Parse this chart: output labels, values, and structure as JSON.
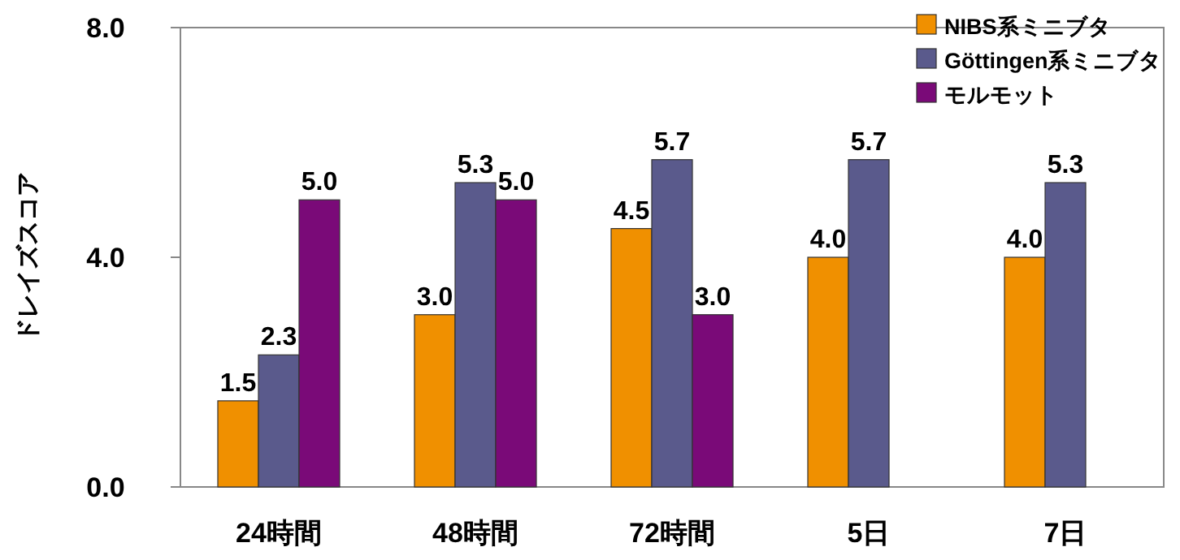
{
  "chart_data": {
    "type": "bar",
    "ylabel": "ドレイズスコア",
    "categories": [
      "24時間",
      "48時間",
      "72時間",
      "5日",
      "7日"
    ],
    "series": [
      {
        "name": "NIBS系ミニブタ",
        "color": "#f09000",
        "values": [
          1.5,
          3.0,
          4.5,
          4.0,
          4.0
        ],
        "value_labels": [
          "1.5",
          "3.0",
          "4.5",
          "4.0",
          "4.0"
        ]
      },
      {
        "name": "Göttingen系ミニブタ",
        "color": "#5a5a8c",
        "values": [
          2.3,
          5.3,
          5.7,
          5.7,
          5.3
        ],
        "value_labels": [
          "2.3",
          "5.3",
          "5.7",
          "5.7",
          "5.3"
        ]
      },
      {
        "name": "モルモット",
        "color": "#7a0a78",
        "values": [
          5.0,
          5.0,
          3.0,
          null,
          null
        ],
        "value_labels": [
          "5.0",
          "5.0",
          "3.0",
          null,
          null
        ]
      }
    ],
    "ylim": [
      0,
      8
    ],
    "yticks": [
      {
        "value": 0,
        "label": "0.0"
      },
      {
        "value": 4,
        "label": "4.0"
      },
      {
        "value": 8,
        "label": "8.0"
      }
    ],
    "legend": "top right",
    "grid": false
  }
}
